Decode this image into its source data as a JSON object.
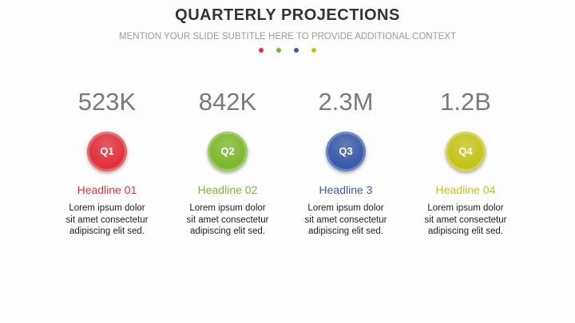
{
  "header": {
    "title": "QUARTERLY PROJECTIONS",
    "subtitle": "MENTION YOUR SLIDE SUBTITLE HERE TO PROVIDE ADDITIONAL CONTEXT"
  },
  "items": [
    {
      "value": "523K",
      "label": "Q1",
      "headline": "Headline 01",
      "color": "#e0323c",
      "body": [
        "Lorem ipsum dolor",
        "sit amet consectetur",
        "adipiscing elit sed."
      ]
    },
    {
      "value": "842K",
      "label": "Q2",
      "headline": "Headline 02",
      "color": "#7cb82f",
      "body": [
        "Lorem ipsum dolor",
        "sit amet consectetur",
        "adipiscing elit sed."
      ]
    },
    {
      "value": "2.3M",
      "label": "Q3",
      "headline": "Headline 3",
      "color": "#3a5ba8",
      "body": [
        "Lorem ipsum dolor",
        "sit amet consectetur",
        "adipiscing elit sed."
      ]
    },
    {
      "value": "1.2B",
      "label": "Q4",
      "headline": "Headline 04",
      "color": "#c3c41a",
      "body": [
        "Lorem ipsum dolor",
        "sit amet consectetur",
        "adipiscing elit sed."
      ]
    }
  ]
}
